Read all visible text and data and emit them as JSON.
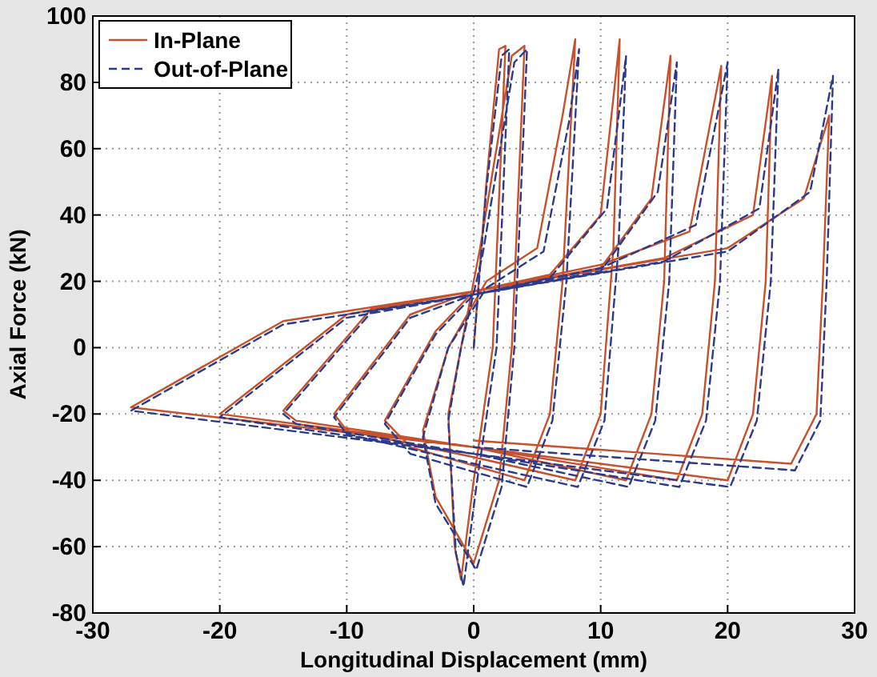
{
  "chart_data": {
    "type": "line",
    "xlabel": "Longitudinal Displacement (mm)",
    "ylabel": "Axial Force (kN)",
    "xlim": [
      -30,
      30
    ],
    "ylim": [
      -80,
      100
    ],
    "xticks": [
      -30,
      -20,
      -10,
      0,
      10,
      20,
      30
    ],
    "yticks": [
      -80,
      -60,
      -40,
      -20,
      0,
      20,
      40,
      60,
      80,
      100
    ],
    "grid": true,
    "legend": "top left",
    "series": [
      {
        "name": "In-Plane",
        "color": "#c8502a",
        "line_style": "solid",
        "x": [
          0,
          1,
          2,
          2.5,
          1.5,
          0,
          -1,
          -1.5,
          -2,
          -1,
          0.5,
          3,
          4,
          3,
          2,
          0,
          -3,
          -4,
          -2,
          1,
          5,
          7,
          8,
          7,
          6,
          4,
          -5,
          -7,
          -3,
          0,
          6,
          10,
          11.5,
          11,
          10,
          8,
          0,
          -10,
          -11,
          -5,
          0,
          10,
          14,
          15.5,
          15,
          14,
          12,
          0,
          -14,
          -15,
          -8,
          0,
          10,
          17,
          19.5,
          19,
          18,
          16,
          0,
          -20,
          -10,
          0,
          15,
          22,
          23.5,
          23,
          22,
          20,
          0,
          -27,
          -15,
          0,
          20,
          26,
          28,
          27.5,
          27,
          25,
          0
        ],
        "values": [
          0,
          50,
          90,
          91,
          0,
          -40,
          -70,
          -60,
          -20,
          0,
          30,
          88,
          91,
          0,
          -40,
          -65,
          -45,
          -25,
          0,
          20,
          30,
          70,
          93,
          20,
          -20,
          -40,
          -30,
          -22,
          5,
          17,
          22,
          40,
          93,
          30,
          -20,
          -40,
          -33,
          -25,
          -20,
          10,
          17,
          24,
          45,
          88,
          20,
          -20,
          -40,
          -30,
          -22,
          -19,
          12,
          17,
          25,
          35,
          85,
          20,
          -20,
          -40,
          -30,
          -20,
          10,
          17,
          27,
          40,
          82,
          20,
          -20,
          -40,
          -30,
          -18,
          8,
          17,
          30,
          45,
          70,
          20,
          -20,
          -35,
          -28
        ]
      },
      {
        "name": "Out-of-Plane",
        "color": "#2b3a8c",
        "line_style": "dashed",
        "x": [
          0,
          1,
          2.2,
          2.8,
          1.8,
          0.2,
          -0.8,
          -1.4,
          -2,
          -1,
          0.7,
          3.2,
          4.2,
          3.2,
          2.2,
          0.2,
          -3,
          -4,
          -2,
          1,
          5.5,
          7.5,
          8.3,
          7.3,
          6.2,
          4.2,
          -5,
          -7,
          -3,
          0,
          6,
          10.5,
          12,
          11.4,
          10.3,
          8.2,
          0,
          -10,
          -11,
          -5,
          0,
          10,
          14.5,
          16,
          15.4,
          14.3,
          12.2,
          0,
          -14,
          -15,
          -8,
          0,
          10,
          17.5,
          20,
          19.4,
          18.3,
          16.2,
          0,
          -20,
          -10,
          0,
          15,
          22.5,
          24,
          23.4,
          22.3,
          20.2,
          0,
          -27,
          -15,
          0,
          20,
          26.5,
          28.3,
          27.8,
          27.3,
          25.3,
          0
        ],
        "values": [
          0,
          48,
          88,
          90,
          0,
          -42,
          -72,
          -62,
          -22,
          0,
          28,
          86,
          90,
          0,
          -42,
          -67,
          -47,
          -27,
          0,
          18,
          29,
          68,
          90,
          20,
          -22,
          -42,
          -32,
          -23,
          4,
          16,
          21,
          42,
          88,
          30,
          -22,
          -42,
          -35,
          -26,
          -21,
          9,
          16,
          23,
          47,
          86,
          20,
          -22,
          -42,
          -32,
          -23,
          -20,
          11,
          16,
          24,
          37,
          86,
          20,
          -22,
          -42,
          -32,
          -21,
          9,
          16,
          26,
          42,
          84,
          20,
          -22,
          -42,
          -32,
          -19,
          7,
          16,
          29,
          47,
          82,
          20,
          -22,
          -37,
          -30
        ]
      }
    ]
  }
}
